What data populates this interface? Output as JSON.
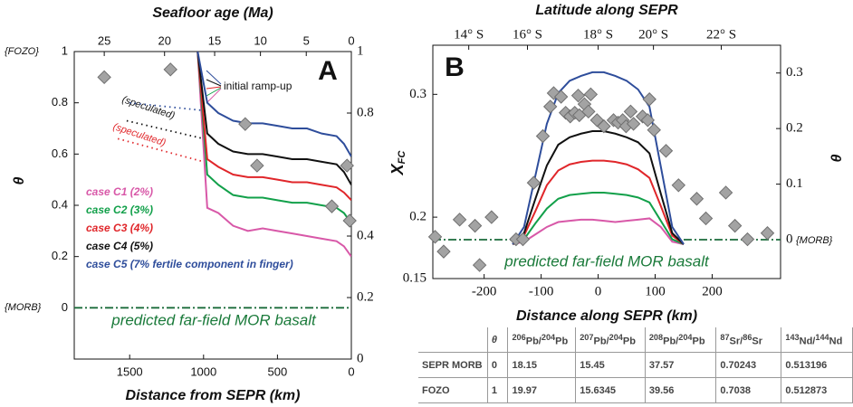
{
  "chart_data": [
    {
      "type": "line",
      "panel_label": "A",
      "xlabel": "Distance from SEPR (km)",
      "x2label": "Seafloor age (Ma)",
      "ylabel": "θ",
      "xlim": [
        1875,
        0
      ],
      "xticks": [
        1500,
        1000,
        500,
        0
      ],
      "x2ticks": [
        {
          "value": 1672,
          "label": "25"
        },
        {
          "value": 1264,
          "label": "20"
        },
        {
          "value": 925,
          "label": "15"
        },
        {
          "value": 615,
          "label": "10"
        },
        {
          "value": 305,
          "label": "5"
        },
        {
          "value": 0,
          "label": "0"
        }
      ],
      "ylim": [
        -0.2,
        1.0
      ],
      "yticks": [
        0,
        0.2,
        0.4,
        0.6,
        0.8,
        1
      ],
      "y2lim": [
        0,
        1
      ],
      "y2ticks": [
        0,
        0.2,
        0.4,
        0.8,
        1
      ],
      "series": [
        {
          "name": "case C1 (2%)",
          "color": "#d858a8",
          "style": "solid",
          "x": [
            1040,
            975,
            900,
            800,
            700,
            600,
            500,
            400,
            300,
            200,
            100,
            50,
            0
          ],
          "values": [
            1.0,
            0.39,
            0.37,
            0.32,
            0.3,
            0.31,
            0.3,
            0.29,
            0.28,
            0.27,
            0.26,
            0.24,
            0.2
          ]
        },
        {
          "name": "case C2 (3%)",
          "color": "#12a04a",
          "style": "solid",
          "x": [
            1040,
            975,
            900,
            800,
            700,
            600,
            500,
            400,
            300,
            200,
            100,
            50,
            0
          ],
          "values": [
            1.0,
            0.52,
            0.48,
            0.44,
            0.43,
            0.43,
            0.42,
            0.41,
            0.41,
            0.4,
            0.39,
            0.37,
            0.33
          ]
        },
        {
          "name": "case C3 (4%)",
          "color": "#e0262a",
          "style": "solid",
          "x": [
            1040,
            975,
            900,
            800,
            700,
            600,
            500,
            400,
            300,
            200,
            100,
            50,
            0
          ],
          "values": [
            1.0,
            0.58,
            0.55,
            0.52,
            0.51,
            0.51,
            0.5,
            0.49,
            0.49,
            0.48,
            0.47,
            0.45,
            0.42
          ]
        },
        {
          "name": "case C4 (5%)",
          "color": "#111111",
          "style": "solid",
          "x": [
            1040,
            975,
            900,
            800,
            700,
            600,
            500,
            400,
            300,
            200,
            100,
            50,
            0
          ],
          "values": [
            1.0,
            0.68,
            0.64,
            0.61,
            0.6,
            0.6,
            0.59,
            0.58,
            0.58,
            0.57,
            0.56,
            0.53,
            0.48
          ]
        },
        {
          "name": "case C5 (7% fertile component in finger)",
          "color": "#2e4d9b",
          "style": "solid",
          "x": [
            1040,
            975,
            900,
            800,
            700,
            600,
            500,
            400,
            300,
            200,
            100,
            50,
            0
          ],
          "values": [
            1.0,
            0.8,
            0.76,
            0.73,
            0.72,
            0.72,
            0.71,
            0.7,
            0.7,
            0.68,
            0.67,
            0.64,
            0.59
          ]
        },
        {
          "color": "#2e4d9b",
          "style": "dotted",
          "x": [
            1500,
            1000
          ],
          "values": [
            0.8,
            0.77
          ]
        },
        {
          "color": "#111111",
          "style": "dotted",
          "x": [
            1520,
            1000
          ],
          "values": [
            0.73,
            0.66
          ]
        },
        {
          "color": "#e0262a",
          "style": "dotted",
          "x": [
            1580,
            1000
          ],
          "values": [
            0.66,
            0.57
          ]
        },
        {
          "color": "#1a6b3a",
          "style": "dashdot",
          "x": [
            1875,
            0
          ],
          "values": [
            0,
            0
          ]
        },
        {
          "color": "#a3a3a3",
          "style": "marker",
          "x": [
            1672,
            1224,
            718,
            638,
            132,
            29,
            11
          ],
          "values": [
            0.9,
            0.93,
            0.717,
            0.555,
            0.396,
            0.555,
            0.34
          ]
        }
      ]
    },
    {
      "type": "line",
      "panel_label": "B",
      "xlabel": "Distance along SEPR (km)",
      "x2label": "Latitude along SEPR",
      "ylabel": {
        "text": "X",
        "sub": "FC"
      },
      "y2label": "θ",
      "xlim": [
        -290,
        320
      ],
      "xticks": [
        -200,
        -100,
        0,
        100,
        200
      ],
      "x2ticks": [
        {
          "value": -227,
          "label": "14° S"
        },
        {
          "value": -124,
          "label": "16° S"
        },
        {
          "value": 0,
          "label": "18° S"
        },
        {
          "value": 97,
          "label": "20° S"
        },
        {
          "value": 216,
          "label": "22° S"
        }
      ],
      "ylim": [
        0.15,
        0.34
      ],
      "yticks": [
        0.15,
        0.2,
        0.3
      ],
      "y2lim": [
        -0.07,
        0.35
      ],
      "y2ticks": [
        0,
        0.1,
        0.2,
        0.3
      ],
      "series": [
        {
          "color": "#d858a8",
          "style": "solid",
          "x": [
            -150,
            -130,
            -110,
            -90,
            -70,
            -50,
            -30,
            -10,
            10,
            30,
            50,
            70,
            90,
            110,
            130,
            150
          ],
          "values": [
            0.178,
            0.18,
            0.186,
            0.192,
            0.196,
            0.197,
            0.198,
            0.198,
            0.197,
            0.196,
            0.197,
            0.198,
            0.199,
            0.192,
            0.18,
            0.178
          ]
        },
        {
          "color": "#12a04a",
          "style": "solid",
          "x": [
            -150,
            -130,
            -110,
            -90,
            -70,
            -50,
            -30,
            -10,
            10,
            30,
            50,
            70,
            90,
            110,
            130,
            150
          ],
          "values": [
            0.178,
            0.182,
            0.195,
            0.207,
            0.215,
            0.218,
            0.219,
            0.22,
            0.22,
            0.219,
            0.218,
            0.216,
            0.212,
            0.197,
            0.182,
            0.178
          ]
        },
        {
          "color": "#e0262a",
          "style": "solid",
          "x": [
            -150,
            -130,
            -110,
            -90,
            -70,
            -50,
            -30,
            -10,
            10,
            30,
            50,
            70,
            90,
            110,
            130,
            150
          ],
          "values": [
            0.178,
            0.185,
            0.205,
            0.226,
            0.238,
            0.243,
            0.245,
            0.246,
            0.246,
            0.245,
            0.243,
            0.239,
            0.232,
            0.209,
            0.185,
            0.178
          ]
        },
        {
          "color": "#111111",
          "style": "solid",
          "x": [
            -150,
            -130,
            -110,
            -90,
            -70,
            -50,
            -30,
            -10,
            10,
            30,
            50,
            70,
            90,
            110,
            130,
            150
          ],
          "values": [
            0.178,
            0.187,
            0.215,
            0.242,
            0.259,
            0.265,
            0.268,
            0.27,
            0.27,
            0.268,
            0.265,
            0.261,
            0.252,
            0.219,
            0.187,
            0.178
          ]
        },
        {
          "color": "#2e4d9b",
          "style": "solid",
          "x": [
            -150,
            -130,
            -110,
            -90,
            -70,
            -50,
            -30,
            -10,
            10,
            30,
            50,
            70,
            90,
            110,
            130,
            150
          ],
          "values": [
            0.178,
            0.192,
            0.234,
            0.276,
            0.301,
            0.311,
            0.315,
            0.318,
            0.318,
            0.315,
            0.311,
            0.304,
            0.29,
            0.241,
            0.192,
            0.178
          ]
        },
        {
          "color": "#1a6b3a",
          "style": "dashdot",
          "axis": "y2",
          "x": [
            -290,
            -150,
            0,
            150,
            320
          ],
          "values": [
            0,
            0,
            null,
            0,
            0
          ]
        },
        {
          "color": "#a3a3a3",
          "style": "marker",
          "x": [
            -286,
            -271,
            -243,
            -216,
            -208,
            -187,
            -144,
            -132,
            -113,
            -97,
            -84,
            -78,
            -65,
            -57,
            -49,
            -41,
            -33,
            -35,
            -24,
            -17,
            -13,
            -2,
            10,
            27,
            35,
            43,
            49,
            57,
            62,
            78,
            87,
            90,
            98,
            119,
            141,
            173,
            189,
            224,
            240,
            262,
            297
          ],
          "values": [
            0.184,
            0.172,
            0.198,
            0.193,
            0.161,
            0.2,
            0.182,
            0.182,
            0.228,
            0.266,
            0.29,
            0.301,
            0.298,
            0.285,
            0.282,
            0.285,
            0.283,
            0.299,
            0.292,
            0.286,
            0.3,
            0.279,
            0.274,
            0.279,
            0.277,
            0.279,
            0.274,
            0.286,
            0.276,
            0.282,
            0.279,
            0.296,
            0.271,
            0.254,
            0.226,
            0.215,
            0.199,
            0.22,
            0.193,
            0.182,
            0.187
          ]
        }
      ]
    }
  ],
  "annotations": {
    "fozo": "{FOZO}",
    "morb_a": "{MORB}",
    "morb_b": "{MORB}",
    "ramp": "initial ramp-up",
    "spec_black": "(speculated)",
    "spec_red": "(speculated)",
    "mor_a": "predicted far-field MOR basalt",
    "mor_b": "predicted far-field MOR basalt"
  },
  "table": {
    "columns": [
      "θ",
      [
        "206",
        "Pb/",
        "204",
        "Pb"
      ],
      [
        "207",
        "Pb/",
        "204",
        "Pb"
      ],
      [
        "208",
        "Pb/",
        "204",
        "Pb"
      ],
      [
        "87",
        "Sr/",
        "86",
        "Sr"
      ],
      [
        "143",
        "Nd/",
        "144",
        "Nd"
      ]
    ],
    "rows": [
      [
        "SEPR MORB",
        "0",
        "18.15",
        "15.45",
        "37.57",
        "0.70243",
        "0.513196"
      ],
      [
        "FOZO",
        "1",
        "19.97",
        "15.6345",
        "39.56",
        "0.7038",
        "0.512873"
      ]
    ]
  }
}
